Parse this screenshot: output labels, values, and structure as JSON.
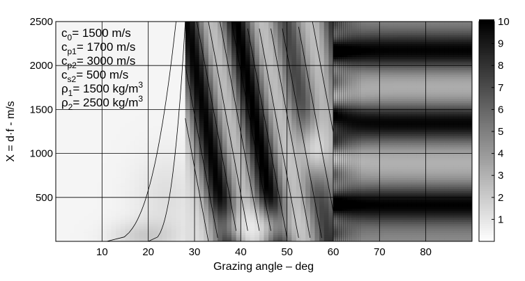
{
  "chart_data": {
    "type": "heatmap",
    "style": "filled contour, grayscale (white = 0, black = 10)",
    "xlabel": "Grazing angle – deg",
    "ylabel": "X = d·f - m/s",
    "xlim": [
      0,
      90
    ],
    "ylim": [
      0,
      2500
    ],
    "x_ticks": [
      10,
      20,
      30,
      40,
      50,
      60,
      70,
      80
    ],
    "y_ticks": [
      500,
      1000,
      1500,
      2000,
      2500
    ],
    "grid": true,
    "colorbar": {
      "range": [
        0,
        10
      ],
      "ticks": [
        1,
        2,
        3,
        4,
        5,
        6,
        7,
        8,
        9,
        10
      ],
      "colormap": "gray, white to black"
    },
    "annotations": [
      {
        "base": "c",
        "sub": "0",
        "text": "= 1500 m/s"
      },
      {
        "base": "c",
        "sub": "p1",
        "text": "= 1700 m/s"
      },
      {
        "base": "c",
        "sub": "p2",
        "text": "= 3000 m/s"
      },
      {
        "base": "c",
        "sub": "s2",
        "text": "= 500 m/s"
      },
      {
        "base": "ρ",
        "sub": "1",
        "text": "= 1500 kg/m",
        "sup": "3"
      },
      {
        "base": "ρ",
        "sub": "2",
        "text": "= 2500 kg/m",
        "sup": "3"
      }
    ],
    "critical_angles_deg": [
      28.1,
      60.0
    ],
    "features": [
      {
        "region": "0-28 deg",
        "level": "low (0-2), near-white"
      },
      {
        "region": "28-60 deg",
        "level": "diagonal dark ridges (8-10) descending from ~33 deg at 2500 m/s to ~55 deg near 500 m/s"
      },
      {
        "region": "60-90 deg",
        "level": "horizontal banding, dark maxima (9-10) near X = 400, 1350, 2150 m/s; background ~5"
      }
    ]
  }
}
